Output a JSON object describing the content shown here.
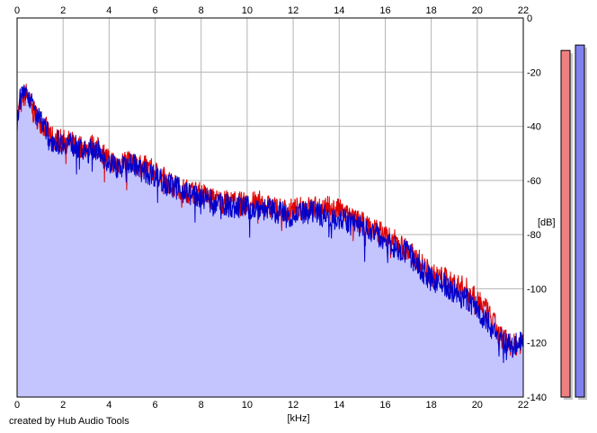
{
  "credit": "created by Hub Audio Tools",
  "chart_data": {
    "type": "line",
    "title": "",
    "xlabel": "[kHz]",
    "ylabel": "[dB]",
    "xlim": [
      0,
      22
    ],
    "ylim": [
      -140,
      0
    ],
    "x_ticks": [
      0,
      2,
      4,
      6,
      8,
      10,
      12,
      14,
      16,
      18,
      20,
      22
    ],
    "y_ticks": [
      0,
      -20,
      -40,
      -60,
      -80,
      -100,
      -120,
      -140
    ],
    "grid": true,
    "fill_color": "#c4c4ff",
    "series": [
      {
        "color": "#e00000",
        "x": [
          0.0,
          0.1,
          0.2,
          0.3,
          0.4,
          0.5,
          0.6,
          0.8,
          1.0,
          1.2,
          1.5,
          1.8,
          2.0,
          2.3,
          2.6,
          3.0,
          3.3,
          3.6,
          4.0,
          4.3,
          4.6,
          5.0,
          5.3,
          5.6,
          6.0,
          6.5,
          7.0,
          7.5,
          8.0,
          8.5,
          9.0,
          9.5,
          10.0,
          10.5,
          11.0,
          11.5,
          12.0,
          12.5,
          13.0,
          13.5,
          14.0,
          14.5,
          15.0,
          15.5,
          16.0,
          16.5,
          17.0,
          17.5,
          18.0,
          18.5,
          19.0,
          19.5,
          20.0,
          20.3,
          20.6,
          21.0,
          21.3,
          21.6,
          22.0
        ],
        "y": [
          -38,
          -33,
          -31,
          -29,
          -28,
          -30,
          -33,
          -36,
          -38,
          -40,
          -44,
          -45,
          -45,
          -46,
          -47,
          -48,
          -47,
          -49,
          -52,
          -54,
          -53,
          -52,
          -55,
          -55,
          -57,
          -60,
          -63,
          -64,
          -65,
          -67,
          -68,
          -68,
          -69,
          -68,
          -70,
          -71,
          -71,
          -70,
          -70,
          -70,
          -71,
          -74,
          -76,
          -78,
          -80,
          -83,
          -86,
          -90,
          -95,
          -96,
          -98,
          -100,
          -103,
          -107,
          -111,
          -117,
          -120,
          -121,
          -119
        ]
      },
      {
        "color": "#0000cc",
        "x": [
          0.0,
          0.1,
          0.2,
          0.3,
          0.4,
          0.5,
          0.6,
          0.8,
          1.0,
          1.2,
          1.5,
          1.8,
          2.0,
          2.3,
          2.6,
          3.0,
          3.3,
          3.6,
          4.0,
          4.3,
          4.6,
          5.0,
          5.3,
          5.6,
          6.0,
          6.5,
          7.0,
          7.5,
          8.0,
          8.5,
          9.0,
          9.5,
          10.0,
          10.5,
          11.0,
          11.5,
          12.0,
          12.5,
          13.0,
          13.5,
          14.0,
          14.5,
          15.0,
          15.5,
          16.0,
          16.5,
          17.0,
          17.5,
          18.0,
          18.5,
          19.0,
          19.5,
          20.0,
          20.3,
          20.6,
          21.0,
          21.3,
          21.6,
          22.0
        ],
        "y": [
          -36,
          -31,
          -29,
          -27,
          -26,
          -28,
          -31,
          -35,
          -38,
          -41,
          -45,
          -46,
          -46,
          -46,
          -48,
          -50,
          -48,
          -50,
          -53,
          -55,
          -55,
          -53,
          -56,
          -57,
          -58,
          -61,
          -63,
          -65,
          -66,
          -68,
          -69,
          -70,
          -70,
          -70,
          -71,
          -72,
          -73,
          -72,
          -72,
          -73,
          -74,
          -76,
          -77,
          -79,
          -82,
          -85,
          -87,
          -92,
          -97,
          -98,
          -101,
          -104,
          -107,
          -111,
          -114,
          -118,
          -121,
          -121,
          -118
        ]
      }
    ],
    "level_meters": [
      {
        "color": "#f08080",
        "level_db": -12
      },
      {
        "color": "#8080f0",
        "level_db": -10
      }
    ]
  }
}
